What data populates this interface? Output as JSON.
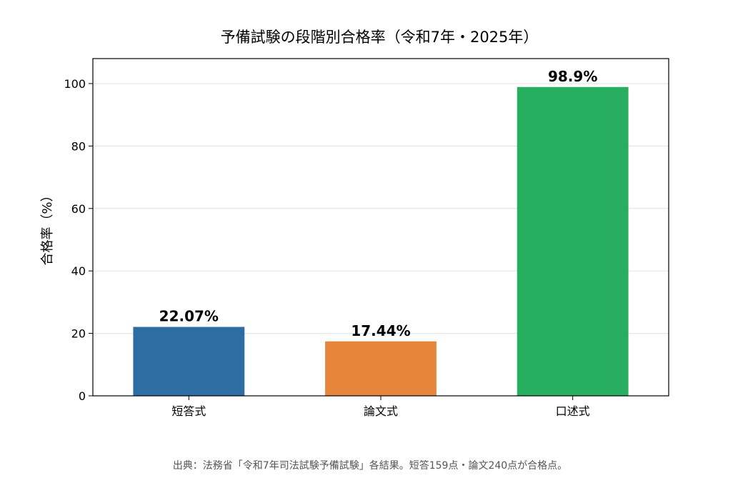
{
  "chart_data": {
    "type": "bar",
    "title": "予備試験の段階別合格率（令和7年・2025年）",
    "xlabel": "",
    "ylabel": "合格率（%）",
    "categories": [
      "短答式",
      "論文式",
      "口述式"
    ],
    "values": [
      22.07,
      17.44,
      98.9
    ],
    "value_labels": [
      "22.07%",
      "17.44%",
      "98.9%"
    ],
    "colors": [
      "#2e6da4",
      "#e8853d",
      "#27ae60"
    ],
    "ylim": [
      0,
      108
    ],
    "yticks": [
      0,
      20,
      40,
      60,
      80,
      100
    ],
    "grid": "horizontal",
    "legend": "none",
    "note": "出典：法務省「令和7年司法試験予備試験」各結果。短答159点・論文240点が合格点。"
  }
}
